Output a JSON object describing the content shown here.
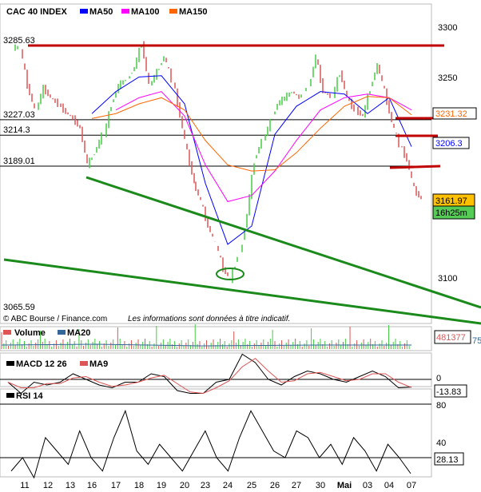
{
  "chart_data": [
    {
      "type": "candlestick-line",
      "title": "CAC 40 INDEX",
      "legend": [
        {
          "name": "MA50",
          "color": "#0000ff"
        },
        {
          "name": "MA100",
          "color": "#ff00ff"
        },
        {
          "name": "MA150",
          "color": "#ff6600"
        }
      ],
      "legend_placement": "top-left",
      "categories": [
        "11",
        "12",
        "13",
        "16",
        "17",
        "18",
        "19",
        "20",
        "23",
        "24",
        "25",
        "26",
        "27",
        "30",
        "Mai",
        "03",
        "04",
        "07"
      ],
      "price": [
        [
          3286,
          3255,
          3235
        ],
        [
          3253,
          3245,
          3240
        ],
        [
          3233,
          3228,
          3220
        ],
        [
          3190,
          3200,
          3214
        ],
        [
          3240,
          3255,
          3260
        ],
        [
          3270,
          3290,
          3255
        ],
        [
          3266,
          3279,
          3260
        ],
        [
          3230,
          3200,
          3175
        ],
        [
          3160,
          3140,
          3125
        ],
        [
          3105,
          3096,
          3116
        ],
        [
          3150,
          3194,
          3210
        ],
        [
          3225,
          3240,
          3245
        ],
        [
          3250,
          3245,
          3253
        ],
        [
          3279,
          3250,
          3246
        ],
        [
          3266,
          3245,
          3235
        ],
        [
          3230,
          3253,
          3272
        ],
        [
          3250,
          3225,
          3207
        ],
        [
          3194,
          3170,
          3162
        ]
      ],
      "ma50": [
        null,
        null,
        null,
        3232,
        3250,
        3262,
        3263,
        3240,
        3175,
        3125,
        3140,
        3215,
        3238,
        3250,
        3248,
        3232,
        3245,
        3205
      ],
      "ma100": [
        null,
        null,
        null,
        null,
        3235,
        3245,
        3250,
        3230,
        3190,
        3160,
        3165,
        3185,
        3210,
        3235,
        3245,
        3248,
        3245,
        3235
      ],
      "ma150": [
        null,
        null,
        null,
        3228,
        3232,
        3240,
        3245,
        3235,
        3210,
        3190,
        3185,
        3186,
        3200,
        3220,
        3238,
        3246,
        3245,
        3231
      ],
      "yticks": [
        "3300",
        "3250",
        "3100"
      ],
      "ylim": [
        3060,
        3310
      ],
      "levels": [
        "3285.63",
        "3227.03",
        "3214.3",
        "3189.01",
        "3065.59"
      ],
      "readouts": {
        "ma150": "3231.32",
        "ma50": "3206.3",
        "last": "3161.97",
        "time": "16h25m"
      },
      "colors": {
        "up": "#44cc44",
        "down": "#dd5555",
        "resistance": "#c00000",
        "trend": "#1a8a1a",
        "last_bg": "#ffc000",
        "time_bg": "#55cc55"
      },
      "source": "© ABC Bourse / Finance.com",
      "disclaimer": "Les informations sont données à titre indicatif."
    },
    {
      "type": "bar",
      "legend": [
        {
          "name": "Volume",
          "color": "#55bb55"
        },
        {
          "name": "MA20",
          "color": "#336699"
        }
      ],
      "readout": "481377",
      "readout2": "75"
    },
    {
      "type": "line",
      "legend": [
        {
          "name": "MACD 12 26",
          "color": "#000000"
        },
        {
          "name": "MA9",
          "color": "#dd5555"
        }
      ],
      "macd": [
        -5,
        -25,
        -5,
        -10,
        -5,
        10,
        0,
        -10,
        -15,
        -5,
        -5,
        10,
        5,
        -20,
        -25,
        -25,
        -5,
        0,
        45,
        30,
        0,
        -10,
        5,
        15,
        10,
        0,
        -5,
        5,
        15,
        5,
        -15,
        -13.83
      ],
      "ytick": "0",
      "readout": "-13.83"
    },
    {
      "type": "line",
      "legend": [
        {
          "name": "RSI 14",
          "color": "#000000"
        }
      ],
      "rsi": [
        30,
        40,
        25,
        55,
        45,
        35,
        60,
        40,
        30,
        55,
        75,
        45,
        35,
        50,
        40,
        30,
        45,
        60,
        40,
        30,
        55,
        75,
        60,
        45,
        40,
        60,
        55,
        40,
        50,
        35,
        55,
        45,
        30,
        50,
        40,
        28.13
      ],
      "yticks": [
        "80",
        "40"
      ],
      "readout": "28.13"
    }
  ]
}
